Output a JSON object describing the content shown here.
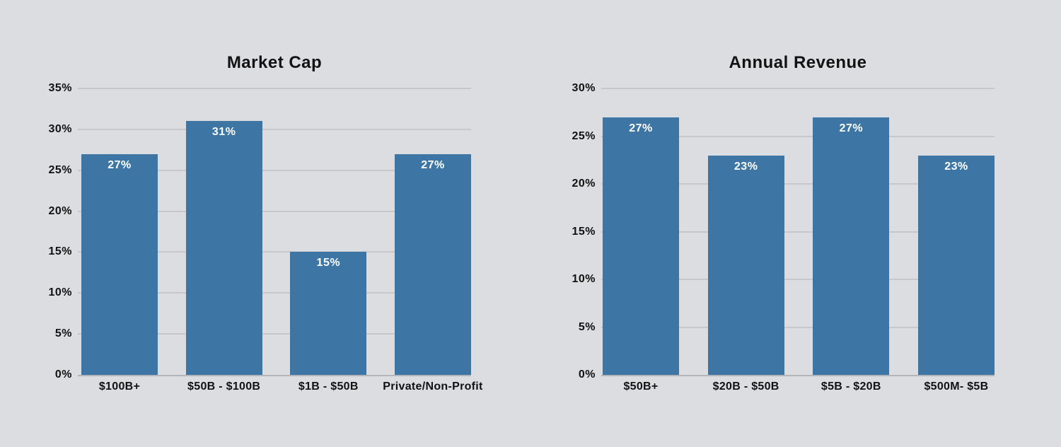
{
  "colors": {
    "background": "#dcdde1",
    "bar": "#3d76a4",
    "gridline": "#c7c8cb",
    "baseline": "#b4b5b9",
    "text": "#121212",
    "bar_label": "#ffffff"
  },
  "chart_data": [
    {
      "type": "bar",
      "title": "Market Cap",
      "categories": [
        "$100B+",
        "$50B - $100B",
        "$1B - $50B",
        "Private/Non-Profit"
      ],
      "values": [
        27,
        31,
        15,
        27
      ],
      "labels": [
        "27%",
        "31%",
        "15%",
        "27%"
      ],
      "xlabel": "",
      "ylabel": "",
      "ylim": [
        0,
        35
      ],
      "ytick_step": 5,
      "yticks": [
        "0%",
        "5%",
        "10%",
        "15%",
        "20%",
        "25%",
        "30%",
        "35%"
      ],
      "grid": true,
      "legend": false,
      "bar_color": "#3d76a4",
      "value_label_position": "inside-top",
      "value_label_color": "#ffffff"
    },
    {
      "type": "bar",
      "title": "Annual Revenue",
      "categories": [
        "$50B+",
        "$20B - $50B",
        "$5B - $20B",
        "$500M- $5B"
      ],
      "values": [
        27,
        23,
        27,
        23
      ],
      "labels": [
        "27%",
        "23%",
        "27%",
        "23%"
      ],
      "xlabel": "",
      "ylabel": "",
      "ylim": [
        0,
        30
      ],
      "ytick_step": 5,
      "yticks": [
        "0%",
        "5%",
        "10%",
        "15%",
        "20%",
        "25%",
        "30%"
      ],
      "grid": true,
      "legend": false,
      "bar_color": "#3d76a4",
      "value_label_position": "inside-top",
      "value_label_color": "#ffffff"
    }
  ]
}
